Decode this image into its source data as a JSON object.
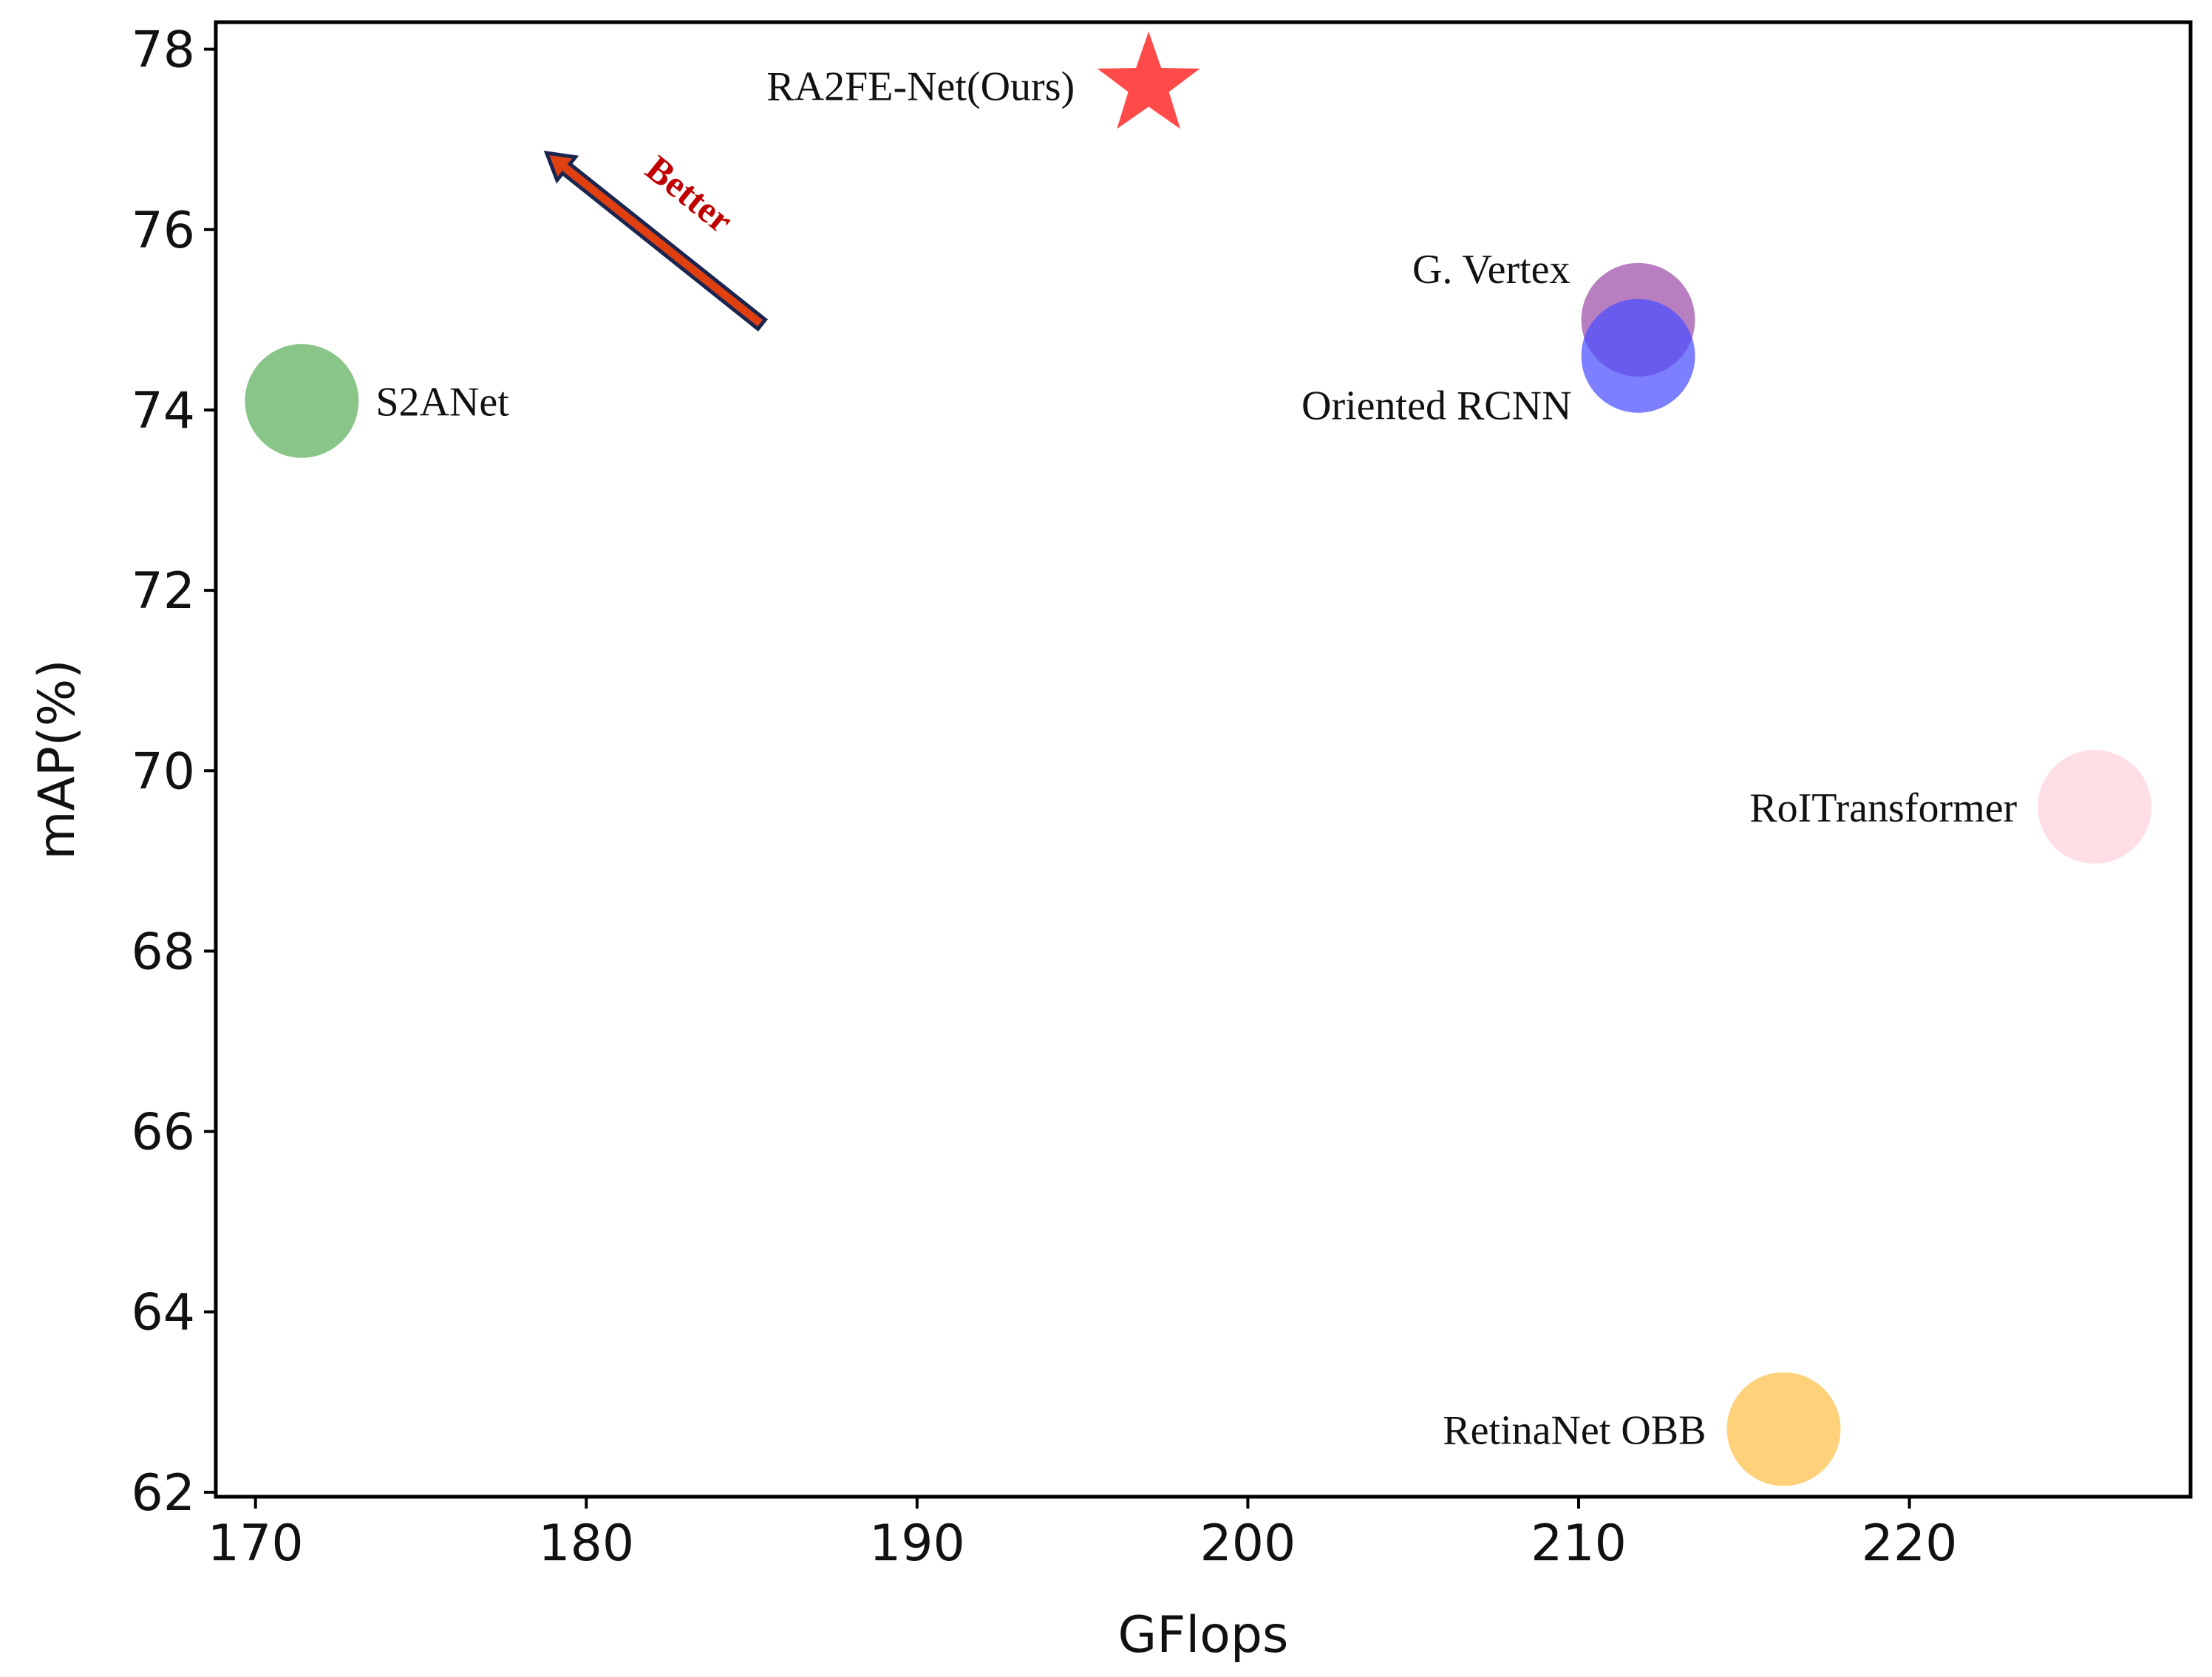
{
  "chart_data": {
    "type": "scatter",
    "title": "",
    "xlabel": "GFlops",
    "ylabel": "mAP(%)",
    "xlim": [
      168.8,
      228.5
    ],
    "ylim": [
      61.95,
      78.3
    ],
    "x_ticks": [
      "170",
      "180",
      "190",
      "200",
      "210",
      "220"
    ],
    "y_ticks": [
      "62",
      "64",
      "66",
      "68",
      "70",
      "72",
      "74",
      "76",
      "78"
    ],
    "grid": false,
    "points": [
      {
        "name": "RA2FE-Net(Ours)",
        "x": 197.0,
        "y": 77.6,
        "marker": "star",
        "color": "#ff4040",
        "label_side": "left"
      },
      {
        "name": "G. Vertex",
        "x": 211.8,
        "y": 75.0,
        "marker": "circle",
        "color": "#9b4ea8",
        "label_side": "upper-left"
      },
      {
        "name": "Oriented RCNN",
        "x": 211.8,
        "y": 74.6,
        "marker": "circle",
        "color": "#4a4dff",
        "label_side": "lower-left"
      },
      {
        "name": "S2ANet",
        "x": 171.4,
        "y": 74.1,
        "marker": "circle",
        "color": "#5cae5c",
        "label_side": "right"
      },
      {
        "name": "RoITransformer",
        "x": 225.6,
        "y": 69.6,
        "marker": "circle",
        "color": "#ffd1dc",
        "label_side": "left"
      },
      {
        "name": "RetinaNet OBB",
        "x": 216.2,
        "y": 62.7,
        "marker": "circle",
        "color": "#ffbf47",
        "label_side": "left"
      }
    ],
    "annotation": {
      "text": "Better",
      "from": [
        185.3,
        74.95
      ],
      "to": [
        178.8,
        76.85
      ],
      "color": "#e04010"
    }
  }
}
